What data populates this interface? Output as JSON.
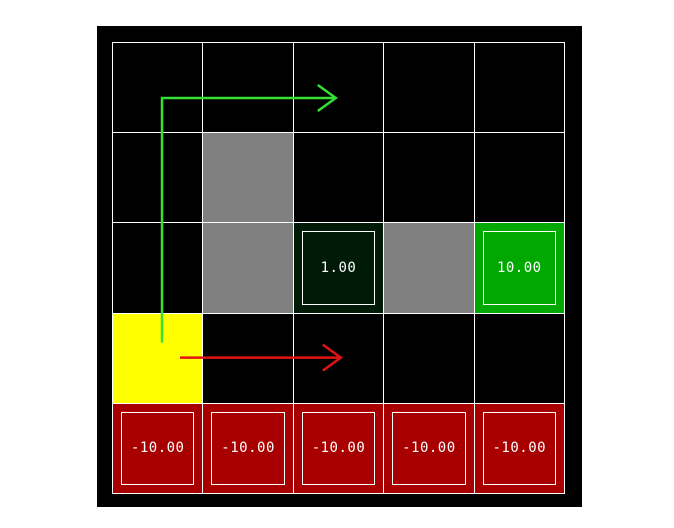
{
  "gridworld": {
    "rows": 5,
    "cols": 5,
    "colors": {
      "background": "#000000",
      "gridline": "#ffffff",
      "empty": "#000000",
      "wall": "#808080",
      "agent": "#ffff00",
      "reward_small": "#001a08",
      "reward_goal": "#00a800",
      "penalty": "#a80000",
      "path_top": "#33e033",
      "path_right": "#e01414"
    },
    "cells": [
      [
        {
          "type": "empty",
          "label": ""
        },
        {
          "type": "empty",
          "label": ""
        },
        {
          "type": "empty",
          "label": ""
        },
        {
          "type": "empty",
          "label": ""
        },
        {
          "type": "empty",
          "label": ""
        }
      ],
      [
        {
          "type": "empty",
          "label": ""
        },
        {
          "type": "wall",
          "label": ""
        },
        {
          "type": "empty",
          "label": ""
        },
        {
          "type": "empty",
          "label": ""
        },
        {
          "type": "empty",
          "label": ""
        }
      ],
      [
        {
          "type": "empty",
          "label": ""
        },
        {
          "type": "wall",
          "label": ""
        },
        {
          "type": "reward_small",
          "label": "1.00"
        },
        {
          "type": "wall",
          "label": ""
        },
        {
          "type": "reward_goal",
          "label": "10.00"
        }
      ],
      [
        {
          "type": "agent",
          "label": ""
        },
        {
          "type": "empty",
          "label": ""
        },
        {
          "type": "empty",
          "label": ""
        },
        {
          "type": "empty",
          "label": ""
        },
        {
          "type": "empty",
          "label": ""
        }
      ],
      [
        {
          "type": "penalty",
          "label": "-10.00"
        },
        {
          "type": "penalty",
          "label": "-10.00"
        },
        {
          "type": "penalty",
          "label": "-10.00"
        },
        {
          "type": "penalty",
          "label": "-10.00"
        },
        {
          "type": "penalty",
          "label": "-10.00"
        }
      ]
    ],
    "paths": [
      {
        "name": "green-path-arrow",
        "color_key": "path_top",
        "cells": [
          [
            3,
            0
          ],
          [
            0,
            0
          ],
          [
            0,
            2
          ]
        ]
      },
      {
        "name": "red-path-arrow",
        "color_key": "path_right",
        "cells": [
          [
            3,
            0
          ],
          [
            3,
            2
          ]
        ]
      }
    ]
  }
}
